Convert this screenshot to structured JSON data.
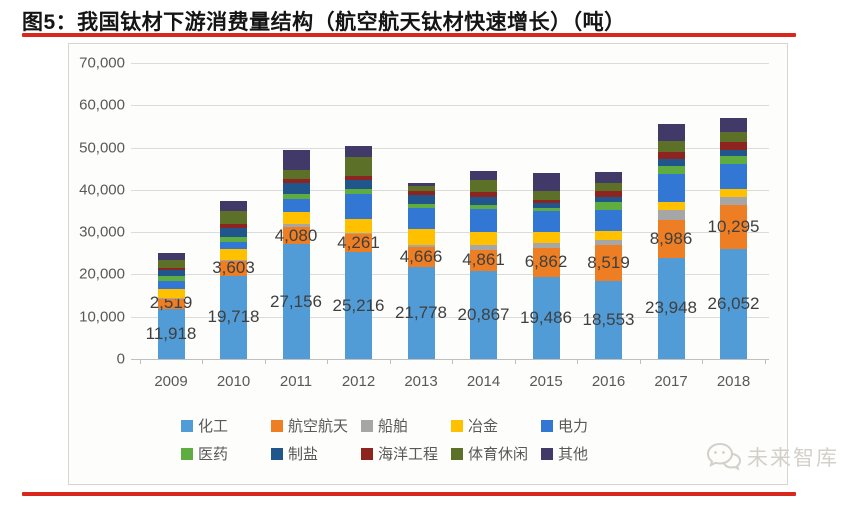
{
  "header": {
    "title": "图5：我国钛材下游消费量结构（航空航天钛材快速增长）（吨）"
  },
  "accent": {
    "rule_color": "#D8281E"
  },
  "watermark": {
    "text": "未来智库",
    "logo": "speech-bubbles-icon",
    "color": "#D3D0CA"
  },
  "chart_data": {
    "type": "bar",
    "stacked": true,
    "title": "我国钛材下游消费量结构（吨）",
    "xlabel": "",
    "ylabel": "",
    "ylim": [
      0,
      70000
    ],
    "ytick_interval": 10000,
    "ytick_labels": [
      "0",
      "10,000",
      "20,000",
      "30,000",
      "40,000",
      "50,000",
      "60,000",
      "70,000"
    ],
    "grid": "horizontal",
    "legend_position": "bottom",
    "legend_rows": 2,
    "categories": [
      "2009",
      "2010",
      "2011",
      "2012",
      "2013",
      "2014",
      "2015",
      "2016",
      "2017",
      "2018"
    ],
    "series": [
      {
        "name": "化工",
        "color": "#519CD6",
        "labels_shown": true,
        "values": [
          11918,
          19718,
          27156,
          25216,
          21778,
          20867,
          19486,
          18553,
          23948,
          26052
        ]
      },
      {
        "name": "航空航天",
        "color": "#EE7E23",
        "labels_shown": true,
        "values": [
          2519,
          3603,
          4080,
          4261,
          4666,
          4861,
          6862,
          8519,
          8986,
          10295
        ]
      },
      {
        "name": "船舶",
        "color": "#A6A6A6",
        "labels_shown": false,
        "values": [
          100,
          150,
          700,
          350,
          500,
          1200,
          1000,
          1050,
          2350,
          2000
        ]
      },
      {
        "name": "冶金",
        "color": "#FFC000",
        "labels_shown": false,
        "values": [
          1900,
          2600,
          2800,
          3200,
          3800,
          3200,
          2600,
          2200,
          1900,
          1900
        ]
      },
      {
        "name": "电力",
        "color": "#3377D4",
        "labels_shown": false,
        "values": [
          1900,
          1600,
          3000,
          6000,
          5000,
          5300,
          5000,
          4900,
          6500,
          5800
        ]
      },
      {
        "name": "医药",
        "color": "#5FAD41",
        "labels_shown": false,
        "values": [
          1200,
          1200,
          1300,
          1200,
          900,
          1000,
          850,
          1800,
          1950,
          1900
        ]
      },
      {
        "name": "制盐",
        "color": "#20568C",
        "labels_shown": false,
        "values": [
          1500,
          2100,
          2600,
          2150,
          2100,
          1850,
          1050,
          1200,
          1580,
          1500
        ]
      },
      {
        "name": "海洋工程",
        "color": "#8E2420",
        "labels_shown": false,
        "values": [
          600,
          1000,
          950,
          1000,
          1050,
          1100,
          760,
          1600,
          1750,
          1800
        ]
      },
      {
        "name": "体育休闲",
        "color": "#5C7028",
        "labels_shown": false,
        "values": [
          1700,
          3000,
          2000,
          4300,
          1000,
          3000,
          2100,
          1900,
          2600,
          2400
        ]
      },
      {
        "name": "其他",
        "color": "#413A68",
        "labels_shown": false,
        "values": [
          1700,
          2300,
          4900,
          2800,
          900,
          2000,
          4200,
          2600,
          3900,
          3400
        ]
      }
    ]
  }
}
